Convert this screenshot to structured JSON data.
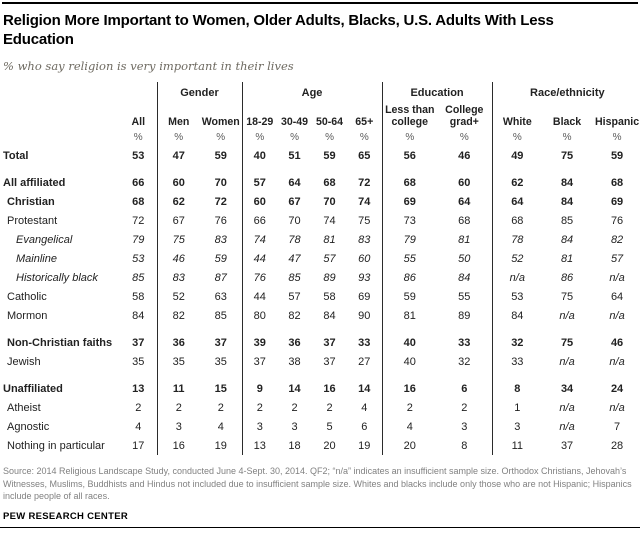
{
  "chart_data": {
    "type": "table",
    "title": "Religion More Important to Women, Older Adults, Blacks, U.S. Adults With Less Education",
    "subtitle": "% who say religion is very important in their lives",
    "unit": "%",
    "column_groups": [
      {
        "label": "",
        "span": 2,
        "divider": true
      },
      {
        "label": "Gender",
        "span": 2,
        "divider": true
      },
      {
        "label": "Age",
        "span": 4,
        "divider": true
      },
      {
        "label": "Education",
        "span": 2,
        "divider": true
      },
      {
        "label": "Race/ethnicity",
        "span": 3,
        "divider": false
      }
    ],
    "columns": [
      {
        "label": "All",
        "divider": true
      },
      {
        "label": "Men",
        "divider": false
      },
      {
        "label": "Women",
        "divider": true
      },
      {
        "label": "18-29",
        "divider": false
      },
      {
        "label": "30-49",
        "divider": false
      },
      {
        "label": "50-64",
        "divider": false
      },
      {
        "label": "65+",
        "divider": true
      },
      {
        "label": "Less than\ncollege",
        "divider": false
      },
      {
        "label": "College\ngrad+",
        "divider": true
      },
      {
        "label": "White",
        "divider": false
      },
      {
        "label": "Black",
        "divider": false
      },
      {
        "label": "Hispanic",
        "divider": false
      }
    ],
    "rows": [
      {
        "label": "Total",
        "bold": true,
        "italic": false,
        "indent": 0,
        "gap_before": false,
        "values": [
          53,
          47,
          59,
          40,
          51,
          59,
          65,
          56,
          46,
          49,
          75,
          59
        ]
      },
      {
        "label": "All affiliated",
        "bold": true,
        "italic": false,
        "indent": 0,
        "gap_before": true,
        "values": [
          66,
          60,
          70,
          57,
          64,
          68,
          72,
          68,
          60,
          62,
          84,
          68
        ]
      },
      {
        "label": "Christian",
        "bold": true,
        "italic": false,
        "indent": 1,
        "gap_before": false,
        "values": [
          68,
          62,
          72,
          60,
          67,
          70,
          74,
          69,
          64,
          64,
          84,
          69
        ]
      },
      {
        "label": "Protestant",
        "bold": false,
        "italic": false,
        "indent": 1,
        "gap_before": false,
        "values": [
          72,
          67,
          76,
          66,
          70,
          74,
          75,
          73,
          68,
          68,
          85,
          76
        ]
      },
      {
        "label": "Evangelical",
        "bold": false,
        "italic": true,
        "indent": 2,
        "gap_before": false,
        "values": [
          79,
          75,
          83,
          74,
          78,
          81,
          83,
          79,
          81,
          78,
          84,
          82
        ]
      },
      {
        "label": "Mainline",
        "bold": false,
        "italic": true,
        "indent": 2,
        "gap_before": false,
        "values": [
          53,
          46,
          59,
          44,
          47,
          57,
          60,
          55,
          50,
          52,
          81,
          57
        ]
      },
      {
        "label": "Historically black",
        "bold": false,
        "italic": true,
        "indent": 2,
        "gap_before": false,
        "values": [
          85,
          83,
          87,
          76,
          85,
          89,
          93,
          86,
          84,
          "n/a",
          86,
          "n/a"
        ]
      },
      {
        "label": "Catholic",
        "bold": false,
        "italic": false,
        "indent": 1,
        "gap_before": false,
        "values": [
          58,
          52,
          63,
          44,
          57,
          58,
          69,
          59,
          55,
          53,
          75,
          64
        ]
      },
      {
        "label": "Mormon",
        "bold": false,
        "italic": false,
        "indent": 1,
        "gap_before": false,
        "values": [
          84,
          82,
          85,
          80,
          82,
          84,
          90,
          81,
          89,
          84,
          "n/a",
          "n/a"
        ]
      },
      {
        "label": "Non-Christian faiths",
        "bold": true,
        "italic": false,
        "indent": 1,
        "gap_before": true,
        "values": [
          37,
          36,
          37,
          39,
          36,
          37,
          33,
          40,
          33,
          32,
          75,
          46
        ]
      },
      {
        "label": "Jewish",
        "bold": false,
        "italic": false,
        "indent": 1,
        "gap_before": false,
        "values": [
          35,
          35,
          35,
          37,
          38,
          37,
          27,
          40,
          32,
          33,
          "n/a",
          "n/a"
        ]
      },
      {
        "label": "Unaffiliated",
        "bold": true,
        "italic": false,
        "indent": 0,
        "gap_before": true,
        "values": [
          13,
          11,
          15,
          9,
          14,
          16,
          14,
          16,
          6,
          8,
          34,
          24
        ]
      },
      {
        "label": "Atheist",
        "bold": false,
        "italic": false,
        "indent": 1,
        "gap_before": false,
        "values": [
          2,
          2,
          2,
          2,
          2,
          2,
          4,
          2,
          2,
          1,
          "n/a",
          "n/a"
        ]
      },
      {
        "label": "Agnostic",
        "bold": false,
        "italic": false,
        "indent": 1,
        "gap_before": false,
        "values": [
          4,
          3,
          4,
          3,
          3,
          5,
          6,
          4,
          3,
          3,
          "n/a",
          7
        ]
      },
      {
        "label": "Nothing in particular",
        "bold": false,
        "italic": false,
        "indent": 1,
        "gap_before": false,
        "values": [
          17,
          16,
          19,
          13,
          18,
          20,
          19,
          20,
          8,
          11,
          37,
          28
        ]
      }
    ]
  },
  "footer": {
    "source": "Source: 2014 Religious Landscape Study, conducted June 4-Sept. 30, 2014. QF2; “n/a” indicates an insufficient sample size. Orthodox Christians, Jehovah’s Witnesses, Muslims, Buddhists and Hindus not included due to insufficient sample size. Whites and blacks include only those who are not Hispanic; Hispanics include people of all races.",
    "brand": "PEW RESEARCH CENTER"
  }
}
